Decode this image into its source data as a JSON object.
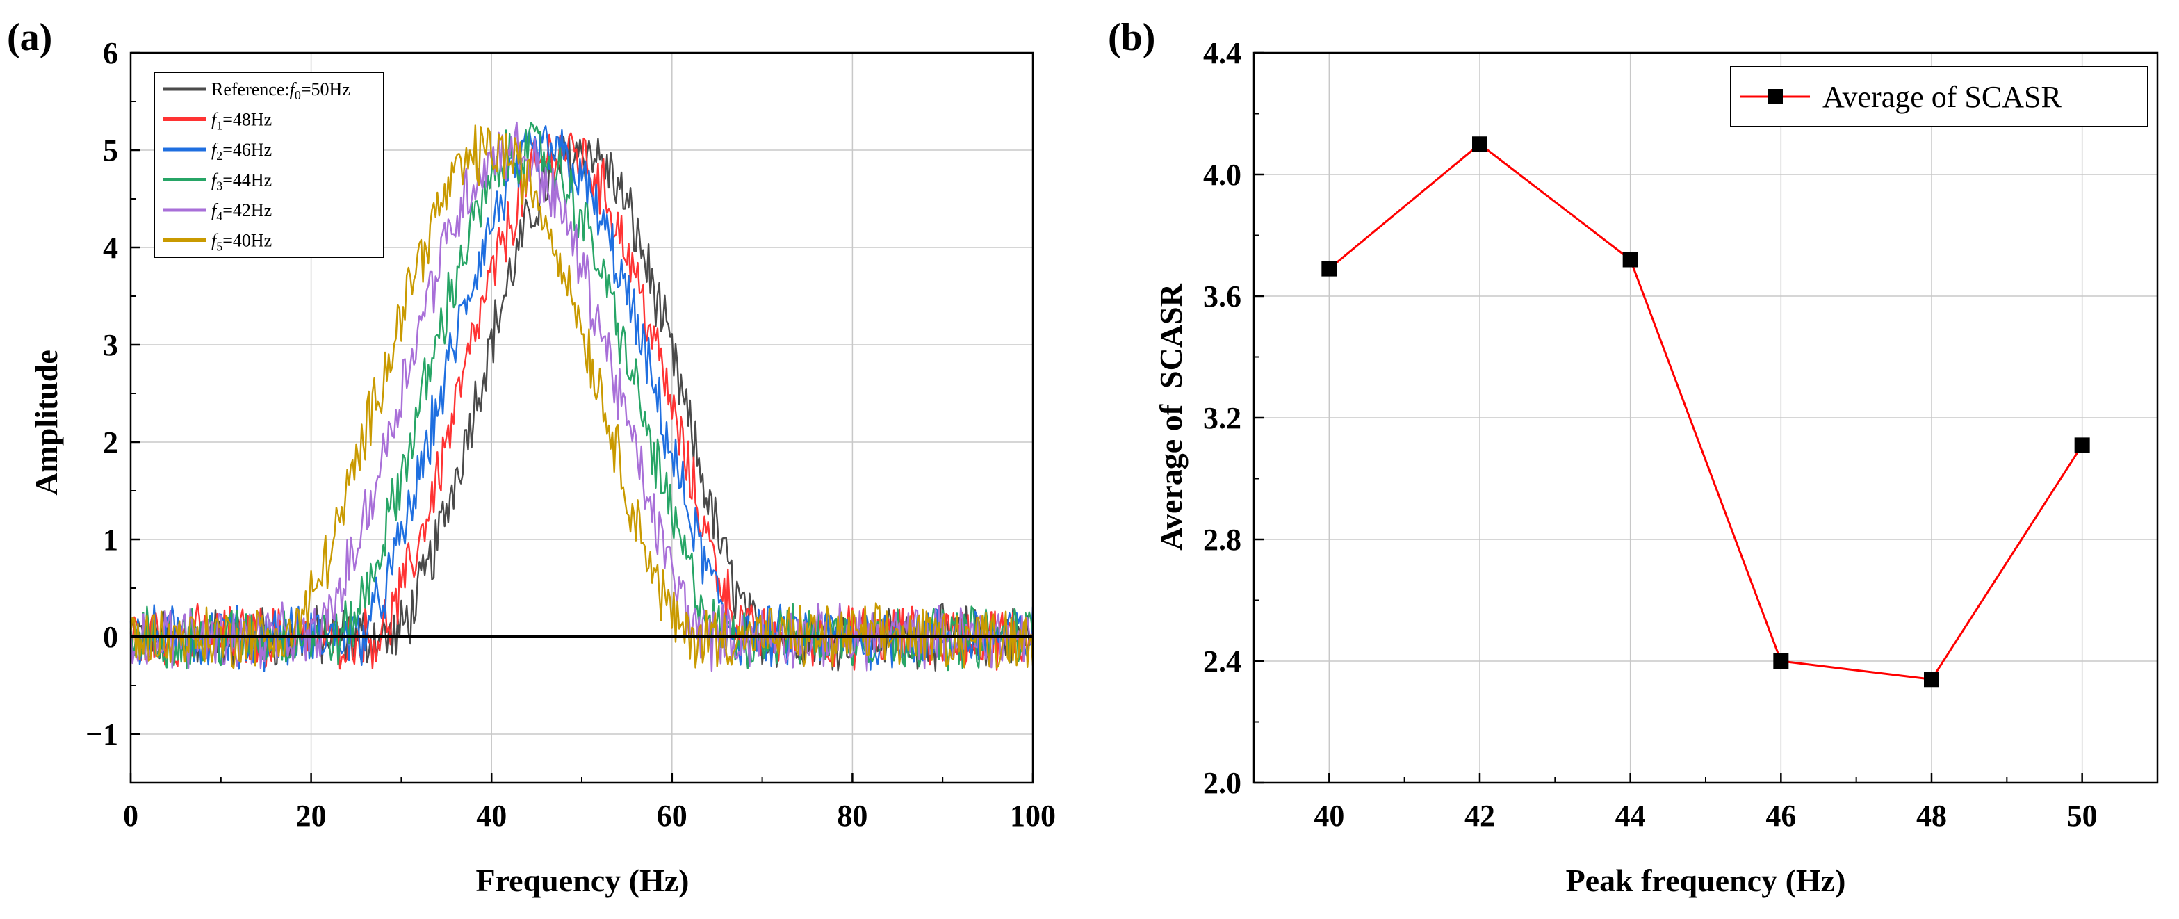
{
  "chart_data": [
    {
      "type": "line",
      "panel_label": "(a)",
      "xlabel": "Frequency (Hz)",
      "ylabel": "Amplitude",
      "xlim": [
        0,
        100
      ],
      "ylim": [
        -1.5,
        6
      ],
      "xticks": [
        "0",
        "20",
        "40",
        "60",
        "80",
        "100"
      ],
      "yticks": [
        "−1",
        "0",
        "1",
        "2",
        "3",
        "4",
        "5",
        "6"
      ],
      "grid": true,
      "legend_position": "top-left",
      "noise_amplitude": 0.28,
      "series": [
        {
          "name_prefix": "Reference:",
          "name_var": "f",
          "name_sub": "0",
          "name_suffix": "=50Hz",
          "color": "#4a4a4a",
          "peak_frequency": 50,
          "start": 29,
          "end": 70,
          "peak_amplitude": 5.0
        },
        {
          "name_prefix": "",
          "name_var": "f",
          "name_sub": "1",
          "name_suffix": "=48Hz",
          "color": "#ff3333",
          "peak_frequency": 48,
          "start": 27,
          "end": 69,
          "peak_amplitude": 5.0
        },
        {
          "name_prefix": "",
          "name_var": "f",
          "name_sub": "2",
          "name_suffix": "=46Hz",
          "color": "#1f6fe0",
          "peak_frequency": 46,
          "start": 25,
          "end": 68,
          "peak_amplitude": 5.0
        },
        {
          "name_prefix": "",
          "name_var": "f",
          "name_sub": "3",
          "name_suffix": "=44Hz",
          "color": "#27a566",
          "peak_frequency": 44,
          "start": 23,
          "end": 66,
          "peak_amplitude": 5.0
        },
        {
          "name_prefix": "",
          "name_var": "f",
          "name_sub": "4",
          "name_suffix": "=42Hz",
          "color": "#a86fd8",
          "peak_frequency": 42,
          "start": 20,
          "end": 64,
          "peak_amplitude": 5.0
        },
        {
          "name_prefix": "",
          "name_var": "f",
          "name_sub": "5",
          "name_suffix": "=40Hz",
          "color": "#c99a00",
          "peak_frequency": 40,
          "start": 17,
          "end": 62,
          "peak_amplitude": 5.0
        }
      ],
      "baseline": {
        "y": 0,
        "color": "#000000"
      }
    },
    {
      "type": "line",
      "panel_label": "(b)",
      "xlabel": "Peak frequency (Hz)",
      "ylabel": "Average of  SCASR",
      "xlim": [
        39,
        51
      ],
      "ylim": [
        2.0,
        4.4
      ],
      "xticks": [
        "40",
        "42",
        "44",
        "46",
        "48",
        "50"
      ],
      "yticks": [
        "2.0",
        "2.4",
        "2.8",
        "3.2",
        "3.6",
        "4.0",
        "4.4"
      ],
      "grid": true,
      "legend_position": "top-right",
      "series": [
        {
          "name": "Average of  SCASR",
          "color": "#ff0000",
          "marker": "square",
          "marker_color": "#000000",
          "x": [
            40,
            42,
            44,
            46,
            48,
            50
          ],
          "y": [
            3.69,
            4.1,
            3.72,
            2.4,
            2.34,
            3.11
          ]
        }
      ]
    }
  ]
}
